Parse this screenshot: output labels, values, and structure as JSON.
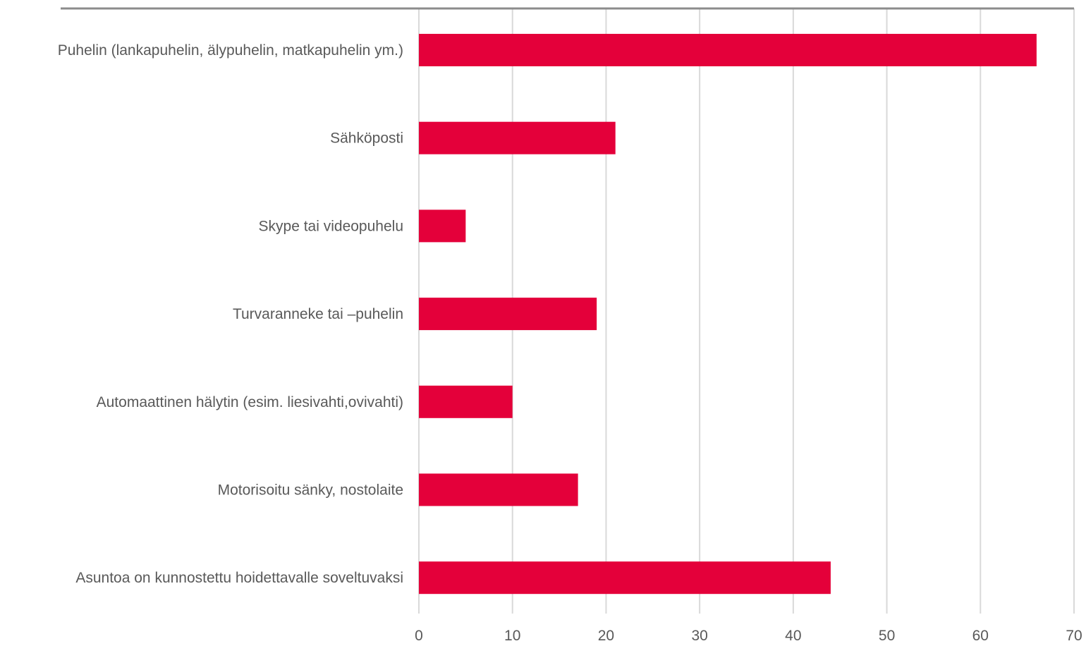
{
  "chart_data": {
    "type": "bar",
    "orientation": "horizontal",
    "categories": [
      "Puhelin (lankapuhelin, älypuhelin, matkapuhelin ym.)",
      "Sähköposti",
      "Skype tai videopuhelu",
      "Turvaranneke tai –puhelin",
      "Automaattinen hälytin (esim. liesivahti,ovivahti)",
      "Motorisoitu sänky, nostolaite",
      "Asuntoa on kunnostettu hoidettavalle soveltuvaksi"
    ],
    "values": [
      66,
      21,
      5,
      19,
      10,
      17,
      44
    ],
    "xlim": [
      0,
      70
    ],
    "xticks": [
      "0",
      "10",
      "20",
      "30",
      "40",
      "50",
      "60",
      "70"
    ],
    "grid": true,
    "legend": "none",
    "colors": {
      "bar": "#e4003a",
      "grid": "#d9d9d9",
      "axis": "#8c8c8c",
      "text": "#595959"
    }
  }
}
